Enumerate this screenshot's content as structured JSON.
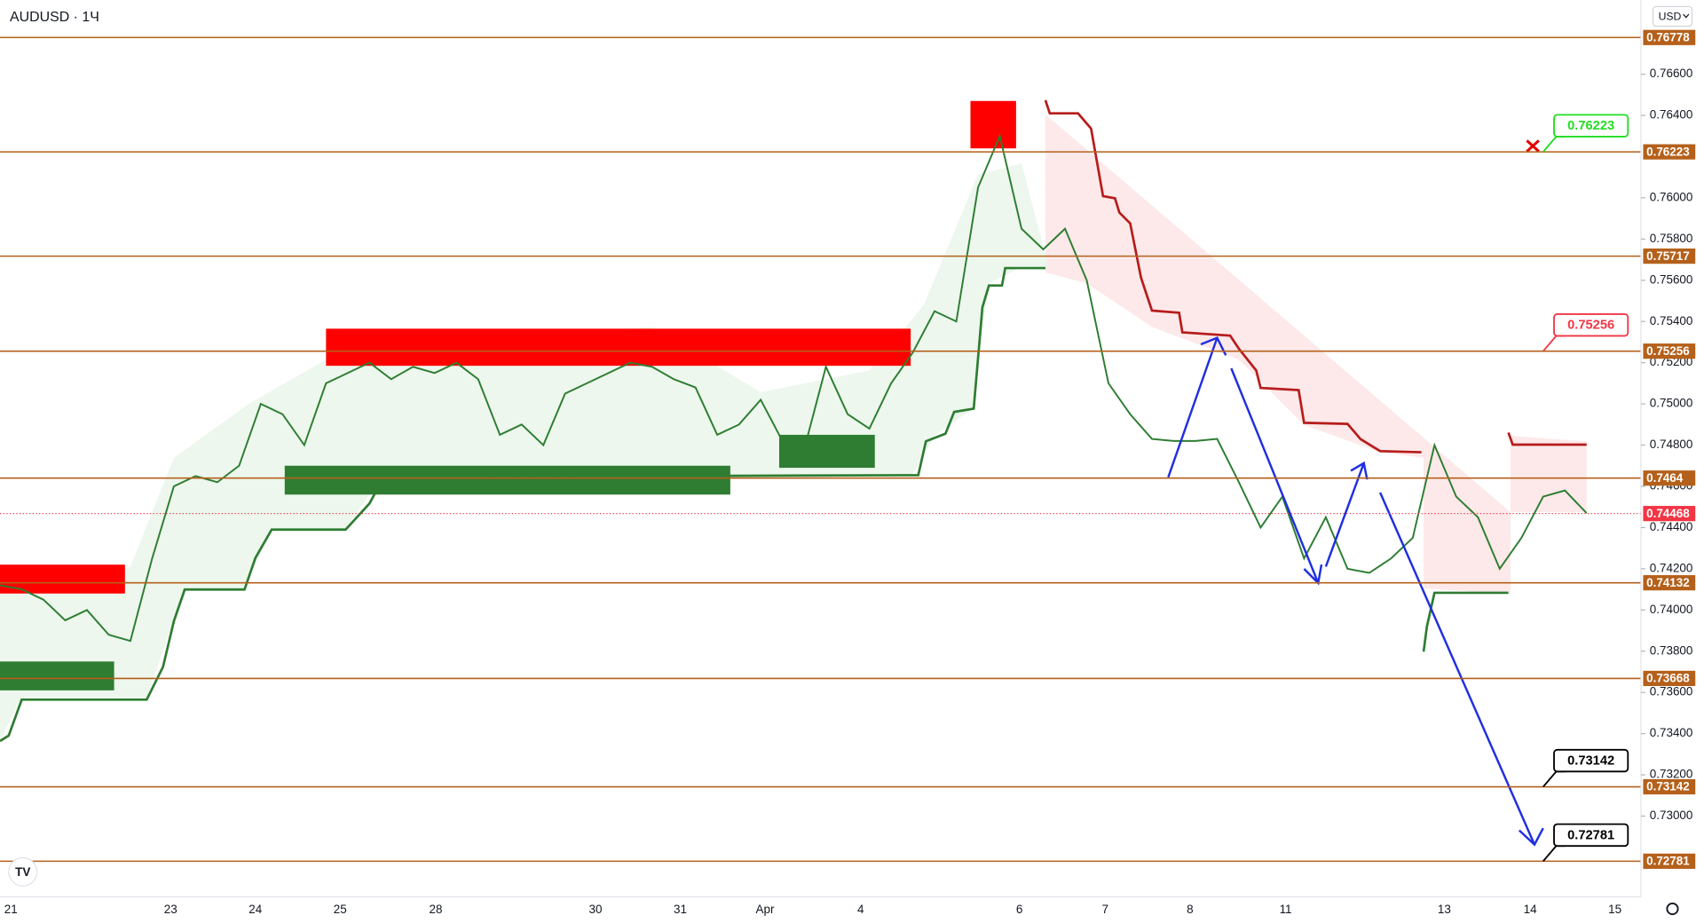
{
  "header": {
    "symbol": "AUDUSD · 1Ч",
    "currency": "USD"
  },
  "chart_data": {
    "type": "line",
    "color": "#2e7d32",
    "values": [
      0.7412,
      0.741,
      0.7405,
      0.7395,
      0.74,
      0.7388,
      0.7385,
      0.7425,
      0.746,
      0.7465,
      0.7462,
      0.747,
      0.75,
      0.7495,
      0.748,
      0.751,
      0.7515,
      0.752,
      0.7512,
      0.7518,
      0.7515,
      0.752,
      0.7512,
      0.7485,
      0.749,
      0.748,
      0.7505,
      0.751,
      0.7515,
      0.752,
      0.7518,
      0.7512,
      0.7508,
      0.7485,
      0.749,
      0.7502,
      0.7482,
      0.7478,
      0.7518,
      0.7495,
      0.7488,
      0.751,
      0.7525,
      0.7545,
      0.754,
      0.7605,
      0.763,
      0.7585,
      0.7575,
      0.7585,
      0.756,
      0.751,
      0.7495,
      0.7483,
      0.7482,
      0.7482,
      0.7483,
      0.7462,
      0.744,
      0.7455,
      0.7425,
      0.7445,
      0.742,
      0.7418,
      0.7425,
      0.7435,
      0.748,
      0.7455,
      0.7445,
      0.742,
      0.7435,
      0.7455,
      0.7458,
      0.7447
    ],
    "x_labels": [
      "21",
      "23",
      "24",
      "25",
      "28",
      "30",
      "31",
      "Apr",
      "4",
      "6",
      "7",
      "8",
      "11",
      "13",
      "14",
      "15"
    ],
    "ylim": [
      0.72608,
      0.7696
    ],
    "yticks": [
      {
        "value": 0.766,
        "label": "0.76600"
      },
      {
        "value": 0.764,
        "label": "0.76400"
      },
      {
        "value": 0.76,
        "label": "0.76000"
      },
      {
        "value": 0.758,
        "label": "0.75800"
      },
      {
        "value": 0.756,
        "label": "0.75600"
      },
      {
        "value": 0.754,
        "label": "0.75400"
      },
      {
        "value": 0.752,
        "label": "0.75200"
      },
      {
        "value": 0.75,
        "label": "0.75000"
      },
      {
        "value": 0.748,
        "label": "0.74800"
      },
      {
        "value": 0.746,
        "label": "0.74600"
      },
      {
        "value": 0.744,
        "label": "0.74400"
      },
      {
        "value": 0.742,
        "label": "0.74200"
      },
      {
        "value": 0.74,
        "label": "0.74000"
      },
      {
        "value": 0.738,
        "label": "0.73800"
      },
      {
        "value": 0.736,
        "label": "0.73600"
      },
      {
        "value": 0.734,
        "label": "0.73400"
      },
      {
        "value": 0.732,
        "label": "0.73200"
      },
      {
        "value": 0.73,
        "label": "0.73000"
      }
    ],
    "levels": [
      0.76778,
      0.76223,
      0.75717,
      0.75256,
      0.7464,
      0.74132,
      0.73668,
      0.73142,
      0.72781
    ],
    "level_color": "#b5601a",
    "last_price": 0.74468,
    "last_price_color": "#f23645",
    "callouts": [
      {
        "value": 0.76223,
        "color": "#22dd22"
      },
      {
        "value": 0.75256,
        "color": "#f23645"
      },
      {
        "value": 0.73142,
        "color": "#000000"
      },
      {
        "value": 0.72781,
        "color": "#000000"
      }
    ],
    "zones": [
      {
        "low": 0.7408,
        "high": 0.7422,
        "color": "#ff0000"
      },
      {
        "low": 0.75185,
        "high": 0.75365,
        "color": "#ff0000"
      },
      {
        "low": 0.7624,
        "high": 0.7647,
        "color": "#ff0000"
      },
      {
        "low": 0.7361,
        "high": 0.7375,
        "color": "#2e7d32"
      },
      {
        "low": 0.7456,
        "high": 0.747,
        "color": "#2e7d32"
      },
      {
        "low": 0.7469,
        "high": 0.7485,
        "color": "#2e7d32"
      }
    ]
  }
}
